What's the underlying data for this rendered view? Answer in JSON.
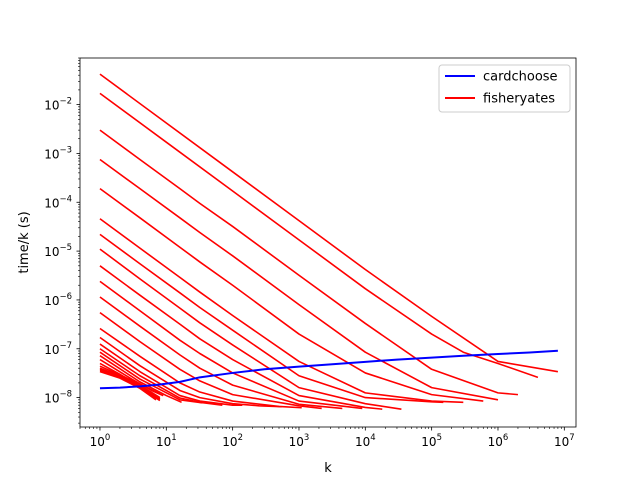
{
  "chart_data": {
    "type": "line",
    "xlabel": "k",
    "ylabel": "time/k (s)",
    "xscale": "log",
    "yscale": "log",
    "xlim": [
      0.5,
      15000000
    ],
    "ylim": [
      2.5e-09,
      0.09
    ],
    "grid": false,
    "legend_position": "top-right",
    "x_ticks": [
      {
        "value": 1,
        "base": "10",
        "exp": "0"
      },
      {
        "value": 10,
        "base": "10",
        "exp": "1"
      },
      {
        "value": 100,
        "base": "10",
        "exp": "2"
      },
      {
        "value": 1000,
        "base": "10",
        "exp": "3"
      },
      {
        "value": 10000,
        "base": "10",
        "exp": "4"
      },
      {
        "value": 100000,
        "base": "10",
        "exp": "5"
      },
      {
        "value": 1000000,
        "base": "10",
        "exp": "6"
      },
      {
        "value": 10000000,
        "base": "10",
        "exp": "7"
      }
    ],
    "y_ticks": [
      {
        "value": 1e-08,
        "base": "10",
        "exp": "−8"
      },
      {
        "value": 1e-07,
        "base": "10",
        "exp": "−7"
      },
      {
        "value": 1e-06,
        "base": "10",
        "exp": "−6"
      },
      {
        "value": 1e-05,
        "base": "10",
        "exp": "−5"
      },
      {
        "value": 0.0001,
        "base": "10",
        "exp": "−4"
      },
      {
        "value": 0.001,
        "base": "10",
        "exp": "−3"
      },
      {
        "value": 0.01,
        "base": "10",
        "exp": "−2"
      }
    ],
    "series": [
      {
        "name": "cardchoose",
        "color": "#0000ff",
        "lines": [
          {
            "x": [
              1,
              2,
              4,
              8,
              16,
              32,
              100,
              300,
              1000,
              3000,
              10000,
              30000,
              100000,
              300000,
              1000000,
              3000000,
              8000000
            ],
            "y": [
              1.55e-08,
              1.6e-08,
              1.7e-08,
              1.85e-08,
              2.1e-08,
              2.6e-08,
              3.2e-08,
              3.8e-08,
              4.3e-08,
              4.8e-08,
              5.4e-08,
              6e-08,
              6.6e-08,
              7.2e-08,
              7.8e-08,
              8.4e-08,
              9.1e-08
            ]
          }
        ]
      },
      {
        "name": "fisheryates",
        "color": "#ff0000",
        "lines": [
          {
            "x": [
              1,
              10,
              100,
              1000,
              10000,
              100000,
              1000000,
              8000000
            ],
            "y": [
              0.042,
              0.0042,
              0.00042,
              4.2e-05,
              4.2e-06,
              4.6e-07,
              5.5e-08,
              3.4e-08
            ]
          },
          {
            "x": [
              1,
              10,
              100,
              1000,
              10000,
              100000,
              300000,
              1000000,
              4000000
            ],
            "y": [
              0.017,
              0.0017,
              0.00017,
              1.7e-05,
              1.7e-06,
              2e-07,
              8.5e-08,
              5e-08,
              2.6e-08
            ]
          },
          {
            "x": [
              1,
              4,
              16,
              32,
              100,
              1000,
              10000,
              100000,
              1000000,
              2000000
            ],
            "y": [
              0.003,
              0.00075,
              0.00019,
              9.5e-05,
              3.2e-05,
              3.2e-06,
              3.3e-07,
              3.8e-08,
              1.25e-08,
              1.15e-08
            ]
          },
          {
            "x": [
              1,
              4,
              16,
              32,
              100,
              1000,
              10000,
              100000,
              1000000
            ],
            "y": [
              0.00075,
              0.00019,
              4.8e-05,
              2.4e-05,
              8e-06,
              8e-07,
              8.5e-08,
              1.6e-08,
              9e-09
            ]
          },
          {
            "x": [
              1,
              4,
              16,
              32,
              100,
              1000,
              10000,
              100000,
              600000
            ],
            "y": [
              0.00019,
              4.8e-05,
              1.2e-05,
              6e-06,
              2e-06,
              2e-07,
              3.2e-08,
              1.15e-08,
              8.5e-09
            ]
          },
          {
            "x": [
              1,
              4,
              16,
              32,
              100,
              1000,
              10000,
              100000,
              300000
            ],
            "y": [
              4.6e-05,
              1.15e-05,
              2.9e-06,
              1.45e-06,
              4.8e-07,
              5.5e-08,
              1.25e-08,
              8.5e-09,
              8e-09
            ]
          },
          {
            "x": [
              1,
              4,
              16,
              32,
              100,
              1000,
              10000,
              100000,
              150000
            ],
            "y": [
              2.2e-05,
              5.5e-06,
              1.4e-06,
              7e-07,
              2.4e-07,
              2.8e-08,
              1e-08,
              8.2e-09,
              8e-09
            ]
          },
          {
            "x": [
              1,
              4,
              16,
              32,
              100,
              1000,
              10000,
              35000
            ],
            "y": [
              1.1e-05,
              2.7e-06,
              6.8e-07,
              3.4e-07,
              1.2e-07,
              1.6e-08,
              7.5e-09,
              5.8e-09
            ]
          },
          {
            "x": [
              1,
              4,
              16,
              32,
              100,
              1000,
              10000,
              18000
            ],
            "y": [
              5e-06,
              1.25e-06,
              3.2e-07,
              1.6e-07,
              6e-08,
              1.1e-08,
              6.3e-09,
              5.8e-09
            ]
          },
          {
            "x": [
              1,
              4,
              16,
              32,
              100,
              1000,
              9000
            ],
            "y": [
              2.4e-06,
              6e-07,
              1.5e-07,
              8e-08,
              3.2e-08,
              8.5e-09,
              6e-09
            ]
          },
          {
            "x": [
              1,
              4,
              16,
              32,
              100,
              1000,
              4500
            ],
            "y": [
              1.15e-06,
              2.9e-07,
              7.5e-08,
              4e-08,
              1.8e-08,
              7.3e-09,
              6e-09
            ]
          },
          {
            "x": [
              1,
              4,
              16,
              32,
              100,
              1000,
              2200
            ],
            "y": [
              5.5e-07,
              1.4e-07,
              3.8e-08,
              2.2e-08,
              1.15e-08,
              6.8e-09,
              6e-09
            ]
          },
          {
            "x": [
              1,
              4,
              16,
              32,
              100,
              500,
              1100
            ],
            "y": [
              2.6e-07,
              7e-08,
              2e-08,
              1.3e-08,
              8.5e-09,
              6.6e-09,
              6.2e-09
            ]
          },
          {
            "x": [
              1,
              4,
              16,
              32,
              100,
              250,
              550
            ],
            "y": [
              1.7e-07,
              4.5e-08,
              1.4e-08,
              1e-08,
              7.5e-09,
              6.8e-09,
              6.5e-09
            ]
          },
          {
            "x": [
              1,
              4,
              16,
              32,
              100,
              140
            ],
            "y": [
              1.25e-07,
              3.4e-08,
              1.1e-08,
              8.5e-09,
              7e-09,
              7e-09
            ]
          },
          {
            "x": [
              1,
              4,
              16,
              32,
              70
            ],
            "y": [
              1e-07,
              2.8e-08,
              9.8e-09,
              8e-09,
              7e-09
            ]
          },
          {
            "x": [
              1,
              4,
              16,
              35
            ],
            "y": [
              8.5e-08,
              2.4e-08,
              9e-09,
              7.8e-09
            ]
          },
          {
            "x": [
              1,
              4,
              10,
              17
            ],
            "y": [
              7.2e-08,
              2.1e-08,
              1.1e-08,
              8e-09
            ]
          },
          {
            "x": [
              1,
              3,
              6,
              9
            ],
            "y": [
              6e-08,
              2.4e-08,
              1.4e-08,
              1.1e-08
            ]
          },
          {
            "x": [
              1,
              2,
              4,
              8
            ],
            "y": [
              5e-08,
              3e-08,
              1.7e-08,
              9.5e-09
            ]
          },
          {
            "x": [
              1,
              2,
              4,
              8
            ],
            "y": [
              4.4e-08,
              2.9e-08,
              1.9e-08,
              1.2e-08
            ]
          },
          {
            "x": [
              1,
              2,
              4,
              8
            ],
            "y": [
              4e-08,
              2.8e-08,
              1.8e-08,
              1e-08
            ]
          },
          {
            "x": [
              1,
              2,
              4,
              8
            ],
            "y": [
              3.8e-08,
              2.7e-08,
              1.7e-08,
              9.2e-09
            ]
          },
          {
            "x": [
              1,
              2,
              4,
              8
            ],
            "y": [
              3.6e-08,
              2.6e-08,
              1.6e-08,
              8.7e-09
            ]
          },
          {
            "x": [
              1,
              2,
              4,
              7
            ],
            "y": [
              3.4e-08,
              2.5e-08,
              1.55e-08,
              9e-09
            ]
          }
        ]
      }
    ]
  }
}
